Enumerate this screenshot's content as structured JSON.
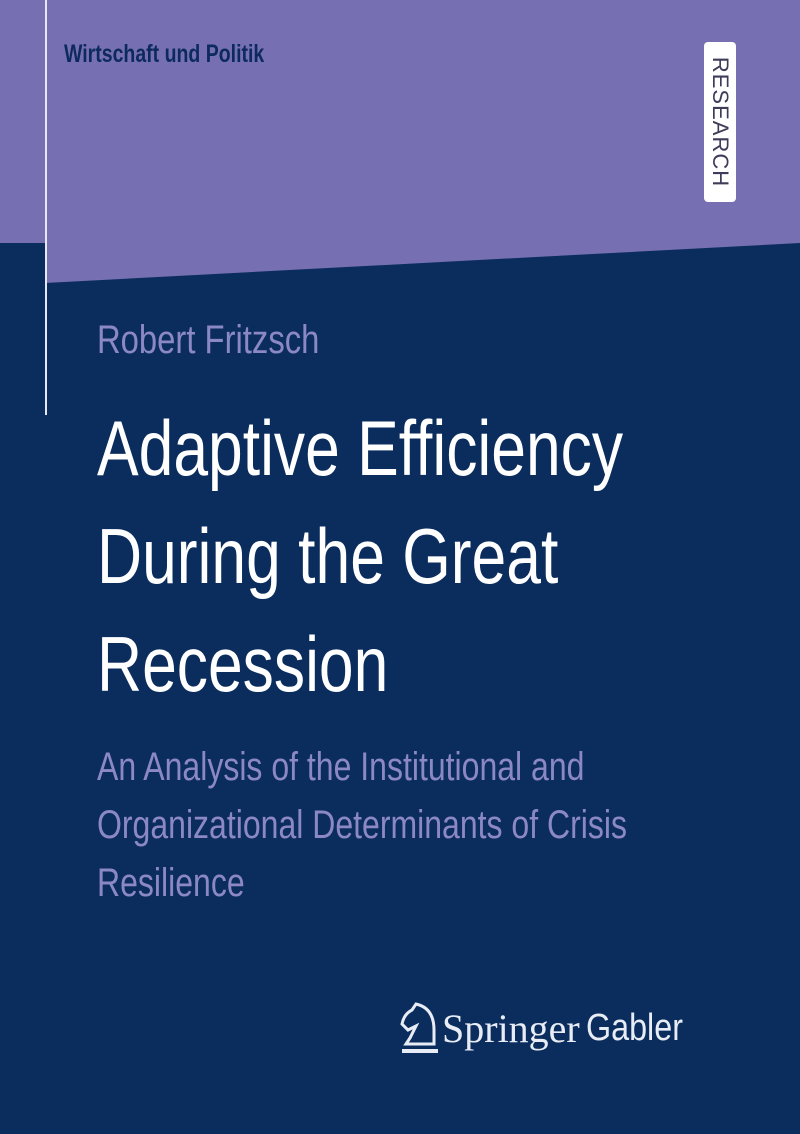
{
  "colors": {
    "top_band": "#7670b2",
    "background": "#0b2d5e",
    "title": "#ffffff",
    "accent_text": "#8c88c6"
  },
  "series": "Wirtschaft und Politik",
  "badge": "RESEARCH",
  "author": "Robert Fritzsch",
  "title_lines": [
    "Adaptive Efficiency",
    "During the Great",
    "Recession"
  ],
  "subtitle_lines": [
    "An Analysis of the Institutional and",
    "Organizational Determinants of Crisis",
    "Resilience"
  ],
  "publisher": {
    "icon": "chess-knight-icon",
    "name_a": "Springer",
    "name_b": "Gabler"
  }
}
